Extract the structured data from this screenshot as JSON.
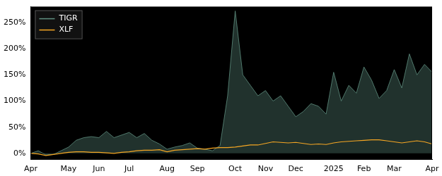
{
  "chart_data": {
    "type": "line",
    "categories": [
      "Apr",
      null,
      null,
      null,
      null,
      "May",
      null,
      null,
      null,
      "Jun",
      null,
      null,
      null,
      "Jul",
      null,
      null,
      null,
      null,
      "Aug",
      null,
      null,
      null,
      "Sep",
      null,
      null,
      null,
      null,
      "Oct",
      null,
      null,
      null,
      "Nov",
      null,
      null,
      null,
      "Dec",
      null,
      null,
      null,
      null,
      "2025",
      null,
      null,
      null,
      "Feb",
      null,
      null,
      null,
      "Mar",
      null,
      null,
      null,
      null,
      "Apr"
    ],
    "series": [
      {
        "name": "TIGR",
        "color": "#5f8f80",
        "type": "area",
        "values": [
          0,
          5,
          -3,
          -2,
          5,
          12,
          25,
          30,
          32,
          30,
          42,
          30,
          35,
          40,
          30,
          38,
          25,
          18,
          8,
          12,
          15,
          20,
          10,
          8,
          5,
          15,
          110,
          272,
          150,
          130,
          110,
          120,
          100,
          110,
          90,
          70,
          80,
          95,
          90,
          75,
          155,
          100,
          130,
          115,
          165,
          140,
          105,
          120,
          160,
          125,
          190,
          150,
          170,
          155
        ]
      },
      {
        "name": "XLF",
        "color": "#f5a623",
        "type": "line",
        "values": [
          0,
          -1,
          -4,
          -2,
          0,
          2,
          3,
          3,
          2,
          2,
          1,
          0,
          2,
          3,
          5,
          6,
          6,
          7,
          3,
          6,
          7,
          8,
          9,
          8,
          10,
          11,
          11,
          12,
          14,
          16,
          16,
          19,
          22,
          21,
          20,
          21,
          19,
          17,
          18,
          17,
          20,
          22,
          23,
          24,
          25,
          26,
          26,
          24,
          22,
          20,
          22,
          24,
          22,
          18
        ]
      }
    ],
    "ylim": [
      -12,
      280
    ],
    "yticks": [
      {
        "value": 0,
        "label": "0%"
      },
      {
        "value": 50,
        "label": "50%"
      },
      {
        "value": 100,
        "label": "100%"
      },
      {
        "value": 150,
        "label": "150%"
      },
      {
        "value": 200,
        "label": "200%"
      },
      {
        "value": 250,
        "label": "250%"
      }
    ],
    "grid": false,
    "legend": "upper left"
  }
}
